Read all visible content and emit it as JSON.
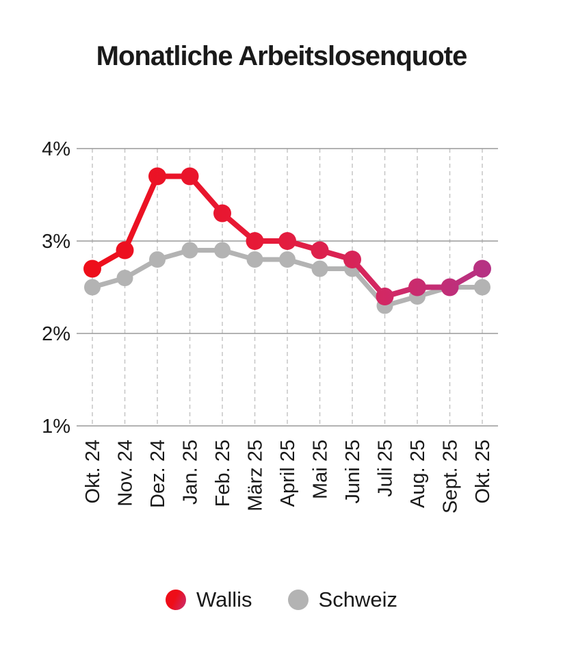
{
  "title": "Monatliche Arbeitslosenquote",
  "chart_data": {
    "type": "line",
    "title": "Monatliche Arbeitslosenquote",
    "categories": [
      "Okt. 24",
      "Nov. 24",
      "Dez. 24",
      "Jan. 25",
      "Feb. 25",
      "März 25",
      "April 25",
      "Mai 25",
      "Juni 25",
      "Juli 25",
      "Aug. 25",
      "Sept. 25",
      "Okt. 25"
    ],
    "series": [
      {
        "name": "Wallis",
        "values": [
          2.7,
          2.9,
          3.7,
          3.7,
          3.3,
          3.0,
          3.0,
          2.9,
          2.8,
          2.4,
          2.5,
          2.5,
          2.7
        ],
        "color_gradient": [
          "#ee0d18",
          "#e61a38",
          "#d02967",
          "#b23387"
        ]
      },
      {
        "name": "Schweiz",
        "values": [
          2.5,
          2.6,
          2.8,
          2.9,
          2.9,
          2.8,
          2.8,
          2.7,
          2.7,
          2.3,
          2.4,
          2.5,
          2.5
        ],
        "color": "#b3b3b3"
      }
    ],
    "xlabel": "",
    "ylabel": "",
    "ylim": [
      1,
      4
    ],
    "yticks": [
      {
        "value": 4,
        "label": "4%"
      },
      {
        "value": 3,
        "label": "3%"
      },
      {
        "value": 2,
        "label": "2%"
      },
      {
        "value": 1,
        "label": "1%"
      }
    ],
    "grid": {
      "horizontal": true,
      "vertical_dashed": true
    },
    "legend_position": "bottom",
    "colors": {
      "grid_h": "#999999",
      "grid_v": "#c6c6c6",
      "text": "#1a1a1a"
    }
  }
}
